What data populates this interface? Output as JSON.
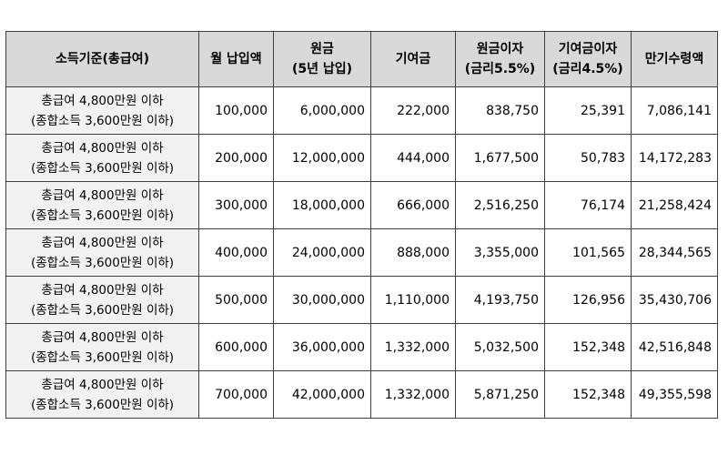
{
  "table": {
    "headers": [
      {
        "lines": [
          "소득기준(총급여)"
        ]
      },
      {
        "lines": [
          "월 납입액"
        ]
      },
      {
        "lines": [
          "원금",
          "(5년 납입)"
        ]
      },
      {
        "lines": [
          "기여금"
        ]
      },
      {
        "lines": [
          "원금이자",
          "(금리5.5%)"
        ]
      },
      {
        "lines": [
          "기여금이자",
          "(금리4.5%)"
        ]
      },
      {
        "lines": [
          "만기수령액"
        ]
      }
    ],
    "rows": [
      {
        "income": [
          "총급여 4,800만원 이하",
          "(종합소득 3,600만원 이하)"
        ],
        "monthly": "100,000",
        "principal": "6,000,000",
        "contribution": "222,000",
        "principal_interest": "838,750",
        "contribution_interest": "25,391",
        "maturity": "7,086,141"
      },
      {
        "income": [
          "총급여 4,800만원 이하",
          "(종합소득 3,600만원 이하)"
        ],
        "monthly": "200,000",
        "principal": "12,000,000",
        "contribution": "444,000",
        "principal_interest": "1,677,500",
        "contribution_interest": "50,783",
        "maturity": "14,172,283"
      },
      {
        "income": [
          "총급여 4,800만원 이하",
          "(종합소득 3,600만원 이하)"
        ],
        "monthly": "300,000",
        "principal": "18,000,000",
        "contribution": "666,000",
        "principal_interest": "2,516,250",
        "contribution_interest": "76,174",
        "maturity": "21,258,424"
      },
      {
        "income": [
          "총급여 4,800만원 이하",
          "(종합소득 3,600만원 이하)"
        ],
        "monthly": "400,000",
        "principal": "24,000,000",
        "contribution": "888,000",
        "principal_interest": "3,355,000",
        "contribution_interest": "101,565",
        "maturity": "28,344,565"
      },
      {
        "income": [
          "총급여 4,800만원 이하",
          "(종합소득 3,600만원 이하)"
        ],
        "monthly": "500,000",
        "principal": "30,000,000",
        "contribution": "1,110,000",
        "principal_interest": "4,193,750",
        "contribution_interest": "126,956",
        "maturity": "35,430,706"
      },
      {
        "income": [
          "총급여 4,800만원 이하",
          "(종합소득 3,600만원 이하)"
        ],
        "monthly": "600,000",
        "principal": "36,000,000",
        "contribution": "1,332,000",
        "principal_interest": "5,032,500",
        "contribution_interest": "152,348",
        "maturity": "42,516,848"
      },
      {
        "income": [
          "총급여 4,800만원 이하",
          "(종합소득 3,600만원 이하)"
        ],
        "monthly": "700,000",
        "principal": "42,000,000",
        "contribution": "1,332,000",
        "principal_interest": "5,871,250",
        "contribution_interest": "152,348",
        "maturity": "49,355,598"
      }
    ]
  },
  "colors": {
    "header_bg": "#d9d9d9",
    "income_cell_bg": "#f2f2f2",
    "border": "#404040"
  }
}
